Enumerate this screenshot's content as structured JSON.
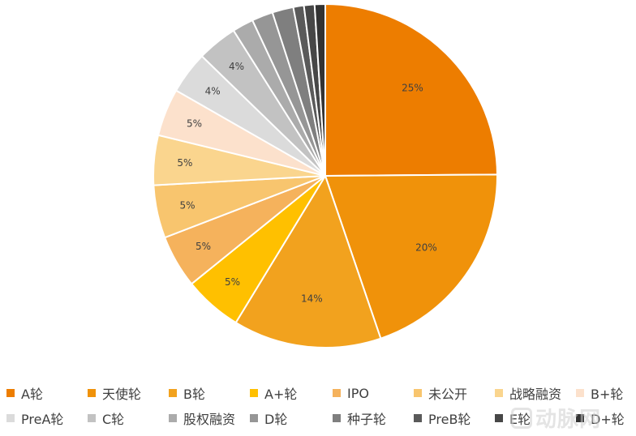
{
  "chart_data": {
    "type": "pie",
    "title": "",
    "slices": [
      {
        "label": "A轮",
        "value": 25,
        "display": "25%",
        "color": "#ED7D00"
      },
      {
        "label": "天使轮",
        "value": 20,
        "display": "20%",
        "color": "#F0920A"
      },
      {
        "label": "B轮",
        "value": 14,
        "display": "14%",
        "color": "#F2A21E"
      },
      {
        "label": "A+轮",
        "value": 5.5,
        "display": "5%",
        "color": "#FFC000"
      },
      {
        "label": "IPO",
        "value": 5,
        "display": "5%",
        "color": "#F5B25C"
      },
      {
        "label": "未公开",
        "value": 5,
        "display": "5%",
        "color": "#F8C56E"
      },
      {
        "label": "战略融资",
        "value": 4.7,
        "display": "5%",
        "color": "#FAD58E"
      },
      {
        "label": "B+轮",
        "value": 4.5,
        "display": "5%",
        "color": "#FCE1CC"
      },
      {
        "label": "PreA轮",
        "value": 4,
        "display": "4%",
        "color": "#DBDBDB"
      },
      {
        "label": "C轮",
        "value": 3.8,
        "display": "4%",
        "color": "#C2C2C2"
      },
      {
        "label": "股权融资",
        "value": 2,
        "display": "",
        "color": "#ABABAB"
      },
      {
        "label": "D轮",
        "value": 2,
        "display": "",
        "color": "#969696"
      },
      {
        "label": "种子轮",
        "value": 2,
        "display": "",
        "color": "#7F7F7F"
      },
      {
        "label": "PreB轮",
        "value": 1,
        "display": "",
        "color": "#5A5A5A"
      },
      {
        "label": "E轮",
        "value": 1,
        "display": "",
        "color": "#474747"
      },
      {
        "label": "D+轮",
        "value": 1,
        "display": "",
        "color": "#333333"
      }
    ],
    "legend_position": "bottom"
  },
  "legend": {
    "rows": [
      [
        {
          "label": "A轮",
          "color": "#ED7D00"
        },
        {
          "label": "天使轮",
          "color": "#F0920A"
        },
        {
          "label": "B轮",
          "color": "#F2A21E"
        },
        {
          "label": "A+轮",
          "color": "#FFC000"
        },
        {
          "label": "IPO",
          "color": "#F5B25C"
        },
        {
          "label": "未公开",
          "color": "#F8C56E"
        },
        {
          "label": "战略融资",
          "color": "#FAD58E"
        },
        {
          "label": "B+轮",
          "color": "#FCE1CC"
        }
      ],
      [
        {
          "label": "PreA轮",
          "color": "#DBDBDB"
        },
        {
          "label": "C轮",
          "color": "#C2C2C2"
        },
        {
          "label": "股权融资",
          "color": "#ABABAB"
        },
        {
          "label": "D轮",
          "color": "#969696"
        },
        {
          "label": "种子轮",
          "color": "#7F7F7F"
        },
        {
          "label": "PreB轮",
          "color": "#5A5A5A"
        },
        {
          "label": "E轮",
          "color": "#474747"
        },
        {
          "label": "D+轮",
          "color": "#333333"
        }
      ]
    ]
  },
  "watermark": {
    "text": "动脉网"
  }
}
